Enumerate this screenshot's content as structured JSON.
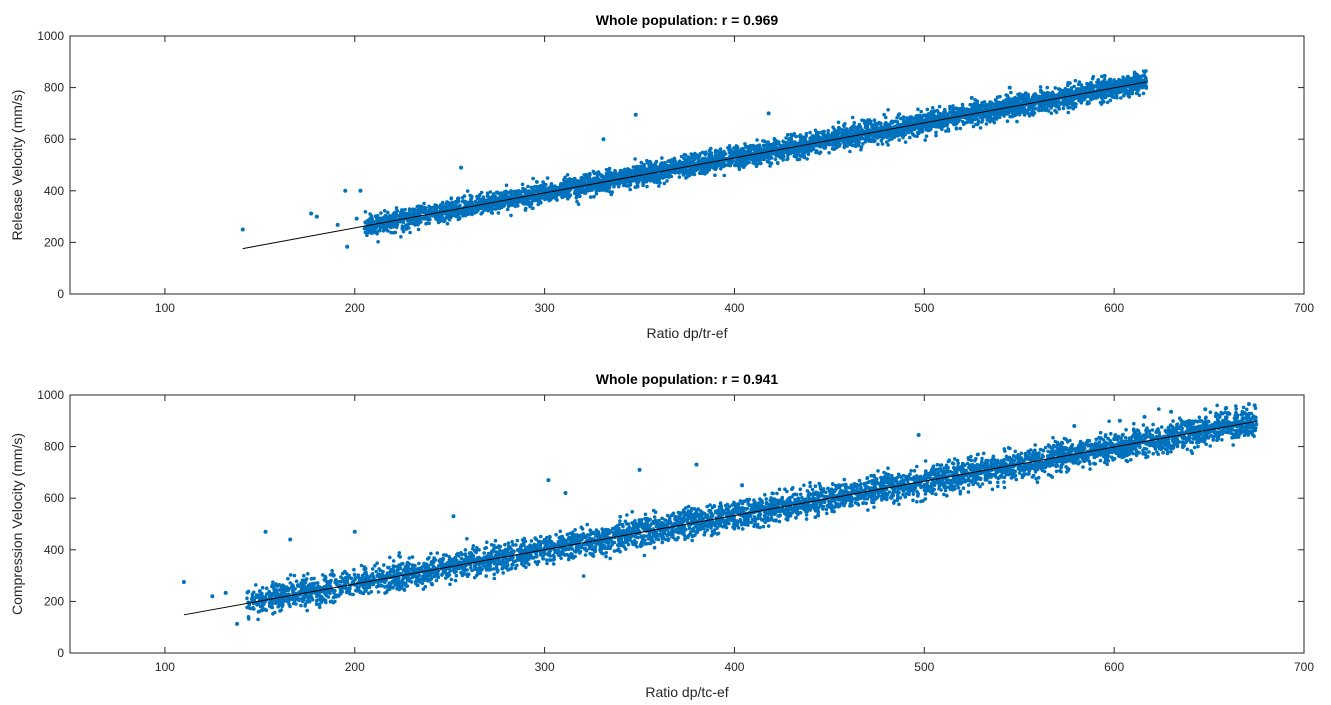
{
  "colors": {
    "points": "#0072BD",
    "fit_line": "#000000",
    "axes": "#262626",
    "background": "#ffffff"
  },
  "chart_data": [
    {
      "type": "scatter",
      "title": "Whole population: r = 0.969",
      "xlabel": "Ratio dp/tr-ef",
      "ylabel": "Release Velocity (mm/s)",
      "xlim": [
        50,
        700
      ],
      "ylim": [
        0,
        1000
      ],
      "xticks": [
        100,
        200,
        300,
        400,
        500,
        600,
        700
      ],
      "yticks": [
        0,
        200,
        400,
        600,
        800,
        1000
      ],
      "grid": false,
      "series": [
        {
          "points": [
            [
              141,
              250
            ],
            [
              177,
              312
            ],
            [
              180,
              300
            ],
            [
              191,
              268
            ],
            [
              195,
              400
            ],
            [
              196,
              183
            ],
            [
              203,
              400
            ],
            [
              201,
              292
            ],
            [
              210,
              260
            ],
            [
              213,
              246
            ],
            [
              233,
              338
            ],
            [
              256,
              490
            ],
            [
              348,
              695
            ],
            [
              331,
              600
            ],
            [
              418,
              700
            ],
            [
              525,
              760
            ],
            [
              545,
              800
            ],
            [
              595,
              845
            ],
            [
              607,
              840
            ],
            [
              612,
              830
            ],
            [
              616,
              805
            ],
            [
              230,
              300
            ],
            [
              250,
              350
            ],
            [
              270,
              380
            ],
            [
              290,
              400
            ],
            [
              310,
              420
            ],
            [
              330,
              440
            ],
            [
              350,
              470
            ],
            [
              370,
              490
            ],
            [
              390,
              510
            ],
            [
              410,
              540
            ],
            [
              430,
              560
            ],
            [
              450,
              590
            ],
            [
              470,
              610
            ],
            [
              490,
              640
            ],
            [
              510,
              660
            ],
            [
              530,
              690
            ],
            [
              550,
              720
            ],
            [
              570,
              750
            ],
            [
              590,
              780
            ]
          ],
          "band": {
            "x_range": [
              205,
              617
            ],
            "line_start": [
              141,
              176
            ],
            "line_end": [
              617,
              822
            ],
            "half_width": 45
          }
        }
      ],
      "fit_line": {
        "x": [
          141,
          617
        ],
        "y": [
          176,
          822
        ]
      }
    },
    {
      "type": "scatter",
      "title": "Whole population: r = 0.941",
      "xlabel": "Ratio dp/tc-ef",
      "ylabel": "Compression Velocity (mm/s)",
      "xlim": [
        50,
        700
      ],
      "ylim": [
        0,
        1000
      ],
      "xticks": [
        100,
        200,
        300,
        400,
        500,
        600,
        700
      ],
      "yticks": [
        0,
        200,
        400,
        600,
        800,
        1000
      ],
      "grid": false,
      "series": [
        {
          "points": [
            [
              110,
              275
            ],
            [
              125,
              220
            ],
            [
              132,
              233
            ],
            [
              138,
              113
            ],
            [
              153,
              470
            ],
            [
              166,
              440
            ],
            [
              200,
              470
            ],
            [
              252,
              530
            ],
            [
              302,
              670
            ],
            [
              311,
              620
            ],
            [
              350,
              710
            ],
            [
              380,
              730
            ],
            [
              404,
              650
            ],
            [
              497,
              845
            ],
            [
              579,
              880
            ],
            [
              603,
              900
            ],
            [
              616,
              915
            ],
            [
              630,
              935
            ],
            [
              648,
              945
            ],
            [
              659,
              950
            ],
            [
              671,
              965
            ],
            [
              674,
              960
            ],
            [
              150,
              240
            ],
            [
              170,
              260
            ],
            [
              190,
              280
            ],
            [
              220,
              320
            ],
            [
              250,
              360
            ],
            [
              280,
              400
            ],
            [
              310,
              440
            ],
            [
              340,
              470
            ],
            [
              370,
              510
            ],
            [
              400,
              550
            ],
            [
              430,
              580
            ],
            [
              460,
              620
            ],
            [
              490,
              650
            ],
            [
              520,
              690
            ],
            [
              550,
              730
            ],
            [
              580,
              780
            ],
            [
              610,
              840
            ],
            [
              640,
              880
            ]
          ],
          "band": {
            "x_range": [
              143,
              675
            ],
            "line_start": [
              110,
              148
            ],
            "line_end": [
              675,
              898
            ],
            "half_width": 60
          }
        }
      ],
      "fit_line": {
        "x": [
          110,
          675
        ],
        "y": [
          148,
          898
        ]
      }
    }
  ]
}
